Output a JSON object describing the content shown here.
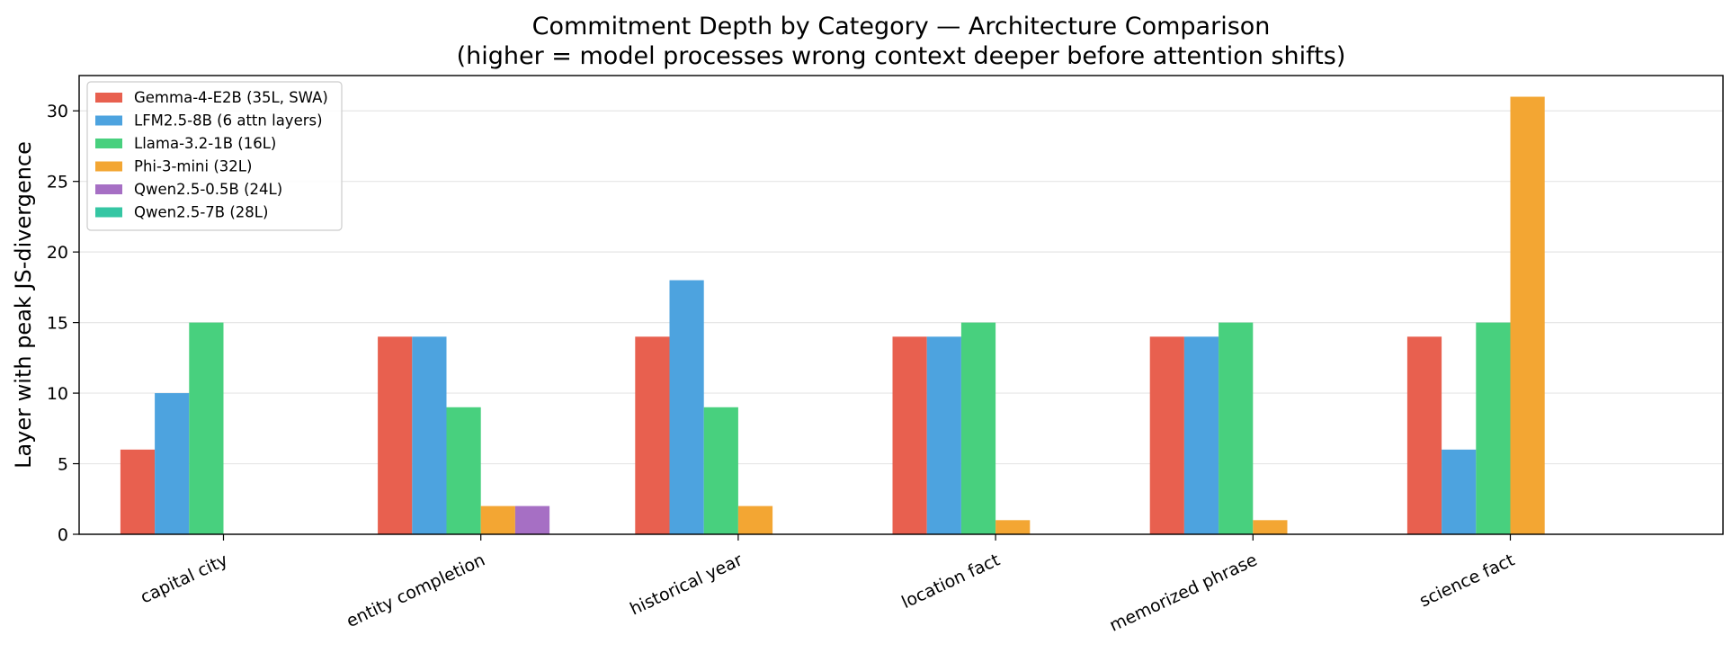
{
  "chart_data": {
    "type": "bar",
    "title": "Commitment Depth by Category — Architecture Comparison",
    "subtitle": "(higher = model processes wrong context deeper before attention shifts)",
    "xlabel": "",
    "ylabel": "Layer with peak JS-divergence",
    "ylim": [
      0,
      32.5
    ],
    "yticks": [
      0,
      5,
      10,
      15,
      20,
      25,
      30
    ],
    "grid": "y",
    "legend_position": "top-left",
    "categories": [
      "capital city",
      "entity completion",
      "historical year",
      "location fact",
      "memorized phrase",
      "science fact"
    ],
    "series": [
      {
        "name": "Gemma-4-E2B (35L, SWA)",
        "color": "#e8604f",
        "values": [
          6,
          14,
          14,
          14,
          14,
          14
        ]
      },
      {
        "name": "LFM2.5-8B (6 attn layers)",
        "color": "#4da3df",
        "values": [
          10,
          14,
          18,
          14,
          14,
          6
        ]
      },
      {
        "name": "Llama-3.2-1B (16L)",
        "color": "#48d07e",
        "values": [
          15,
          9,
          9,
          15,
          15,
          15
        ]
      },
      {
        "name": "Phi-3-mini (32L)",
        "color": "#f3a633",
        "values": [
          0,
          2,
          2,
          1,
          1,
          31
        ]
      },
      {
        "name": "Qwen2.5-0.5B (24L)",
        "color": "#a66fc4",
        "values": [
          0,
          2,
          0,
          0,
          0,
          0
        ]
      },
      {
        "name": "Qwen2.5-7B (28L)",
        "color": "#35c6a3",
        "values": [
          0,
          0,
          0,
          0,
          0,
          0
        ]
      }
    ]
  }
}
